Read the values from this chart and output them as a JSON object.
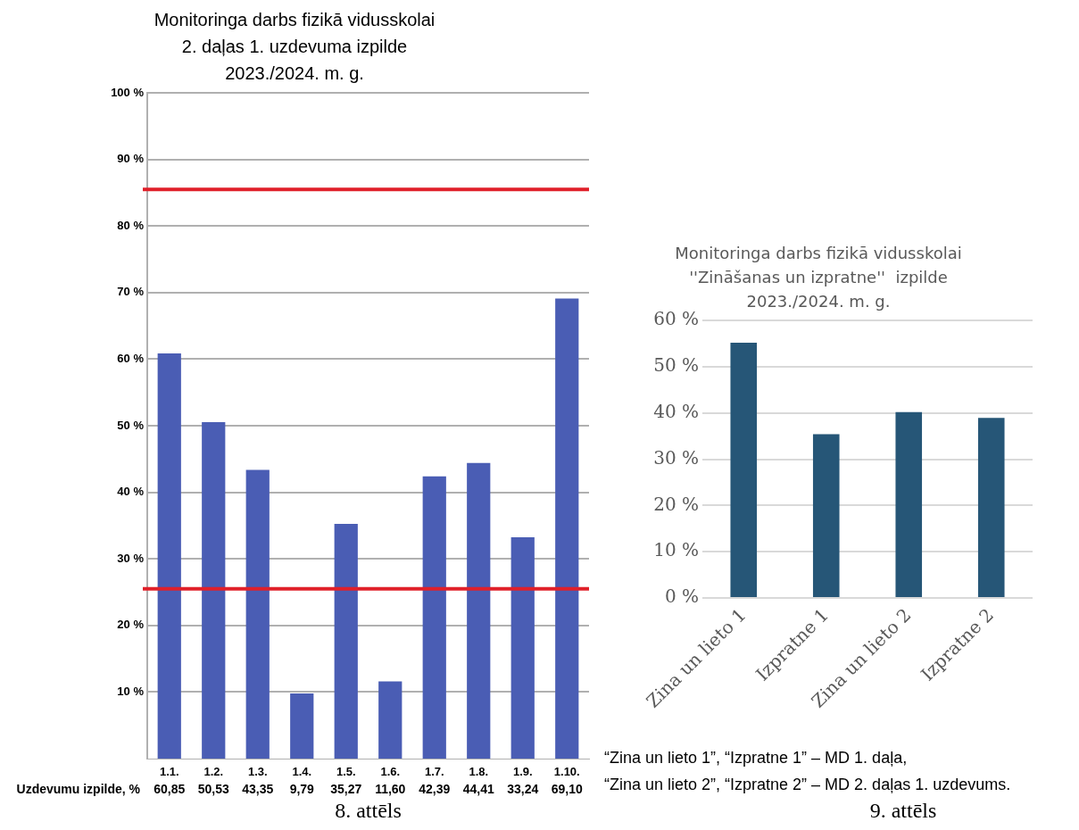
{
  "chart_data": [
    {
      "type": "bar",
      "title": "Monitoringa darbs fizikā vidusskolai\n2. daļas 1. uzdevuma izpilde\n2023./2024. m. g.",
      "categories": [
        "1.1.",
        "1.2.",
        "1.3.",
        "1.4.",
        "1.5.",
        "1.6.",
        "1.7.",
        "1.8.",
        "1.9.",
        "1.10."
      ],
      "values": [
        60.85,
        50.53,
        43.35,
        9.79,
        35.27,
        11.6,
        42.39,
        44.41,
        33.24,
        69.1
      ],
      "value_labels": [
        "60,85",
        "50,53",
        "43,35",
        "9,79",
        "35,27",
        "11,60",
        "42,39",
        "44,41",
        "33,24",
        "69,10"
      ],
      "color": "#4a5db4",
      "ylim": [
        0,
        100
      ],
      "yticks": [
        {
          "value": 10,
          "label": "10 %"
        },
        {
          "value": 20,
          "label": "20 %"
        },
        {
          "value": 30,
          "label": "30 %"
        },
        {
          "value": 40,
          "label": "40 %"
        },
        {
          "value": 50,
          "label": "50 %"
        },
        {
          "value": 60,
          "label": "60 %"
        },
        {
          "value": 70,
          "label": "70 %"
        },
        {
          "value": 80,
          "label": "80 %"
        },
        {
          "value": 90,
          "label": "90 %"
        },
        {
          "value": 100,
          "label": "100 %"
        }
      ],
      "ref_lines": [
        {
          "axis": "y",
          "value": 85.5,
          "color": "#e0202a"
        },
        {
          "axis": "y",
          "value": 25.5,
          "color": "#e0202a"
        }
      ],
      "grid": "y",
      "legend": false,
      "annotations": [
        "Uzdevumu izpilde, %",
        "8. attēls"
      ]
    },
    {
      "type": "bar",
      "title": "Monitoringa darbs fizikā vidusskolai\n''Zināšanas un izpratne''  izpilde\n2023./2024. m. g.",
      "categories": [
        "Zina un lieto 1",
        "Izpratne 1",
        "Zina un lieto 2",
        "Izpratne 2"
      ],
      "values": [
        55.2,
        35.4,
        40.2,
        38.9
      ],
      "color": "#265677",
      "ylim": [
        0,
        60
      ],
      "yticks": [
        {
          "value": 0,
          "label": "0 %"
        },
        {
          "value": 10,
          "label": "10 %"
        },
        {
          "value": 20,
          "label": "20 %"
        },
        {
          "value": 30,
          "label": "30 %"
        },
        {
          "value": 40,
          "label": "40 %"
        },
        {
          "value": 50,
          "label": "50 %"
        },
        {
          "value": 60,
          "label": "60 %"
        }
      ],
      "grid": "y",
      "legend": false,
      "annotations": [
        "“Zina un lieto 1”, “Izpratne 1” – MD 1. daļa,",
        "“Zina un lieto 2”, “Izpratne 2” – MD 2. daļas 1. uzdevums.",
        "9. attēls"
      ]
    }
  ]
}
